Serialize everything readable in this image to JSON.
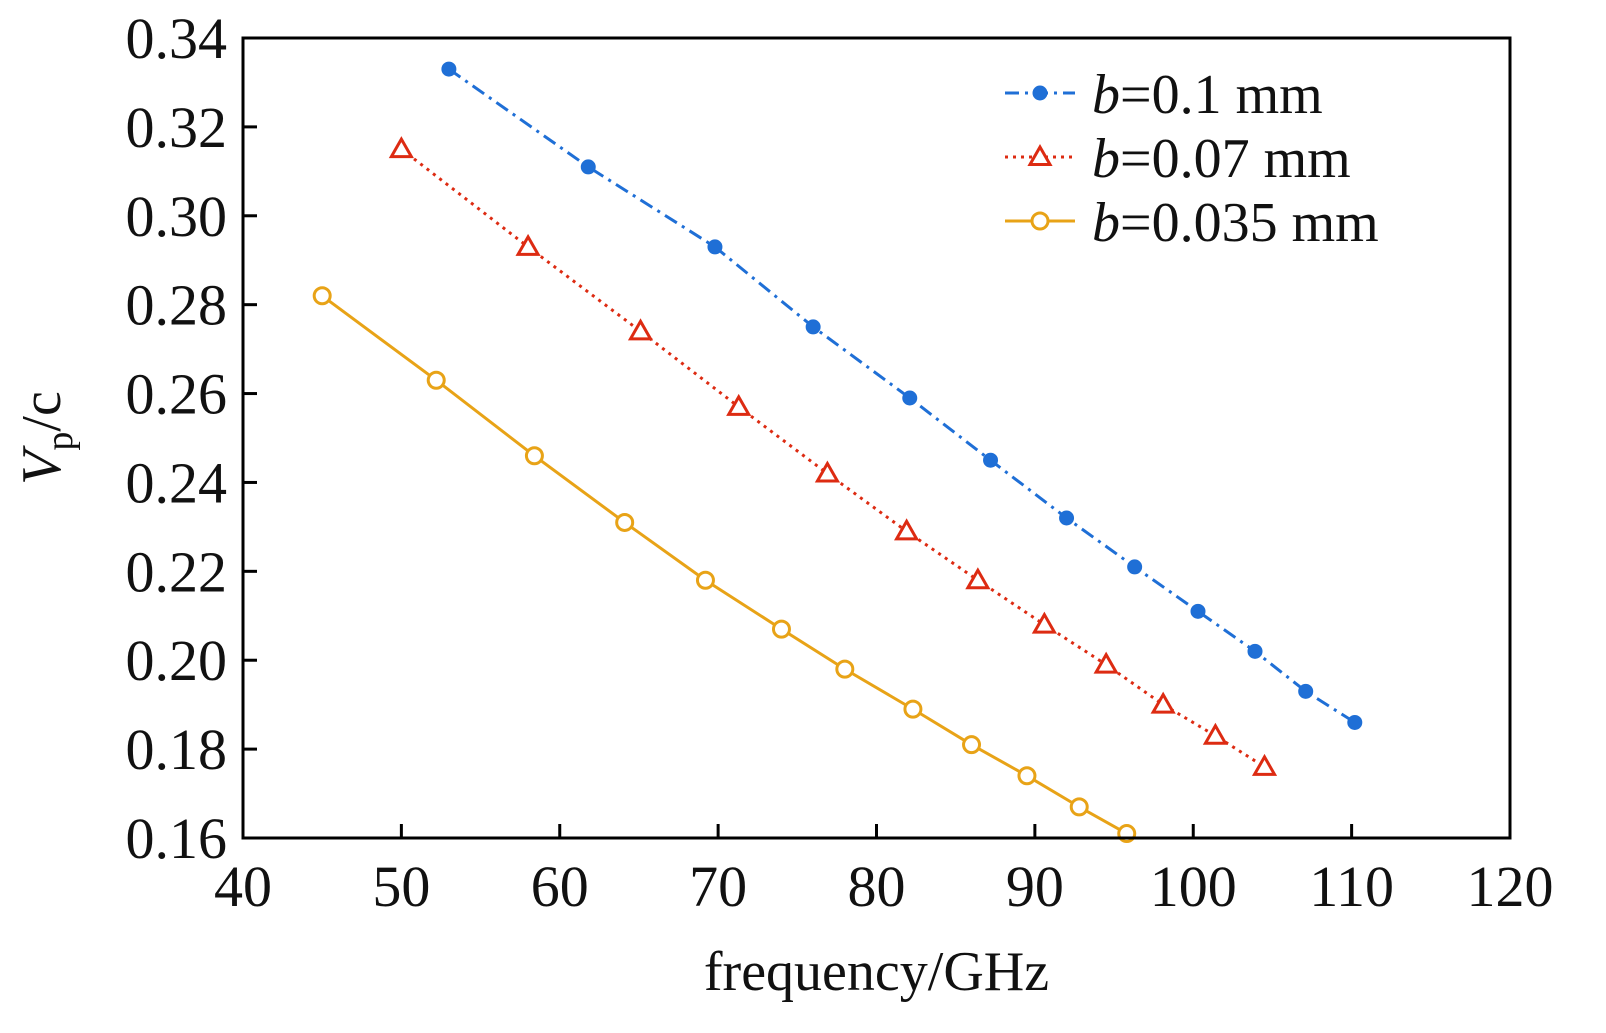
{
  "chart_data": {
    "type": "line",
    "xlabel": "frequency/GHz",
    "ylabel": {
      "main": "V",
      "sub": "p",
      "suffix": "/c"
    },
    "xlim": [
      40,
      120
    ],
    "ylim": [
      0.16,
      0.34
    ],
    "x_ticks": [
      "40",
      "50",
      "60",
      "70",
      "80",
      "90",
      "100",
      "110",
      "120"
    ],
    "y_ticks": [
      "0.16",
      "0.18",
      "0.20",
      "0.22",
      "0.24",
      "0.26",
      "0.28",
      "0.30",
      "0.32",
      "0.34"
    ],
    "legend_position": "top-right",
    "grid": false,
    "series": [
      {
        "name": "b=0.1 mm",
        "name_var": "b",
        "name_rest": "=0.1 mm",
        "color": "#1f6fd6",
        "line_style": "dash-dot",
        "marker": "filled-circle",
        "x": [
          53.0,
          61.8,
          69.8,
          76.0,
          82.1,
          87.2,
          92.0,
          96.3,
          100.3,
          103.9,
          107.1,
          110.2
        ],
        "y": [
          0.333,
          0.311,
          0.293,
          0.275,
          0.259,
          0.245,
          0.232,
          0.221,
          0.211,
          0.202,
          0.193,
          0.186
        ]
      },
      {
        "name": "b=0.07 mm",
        "name_var": "b",
        "name_rest": "=0.07 mm",
        "color": "#dd2b12",
        "line_style": "dotted",
        "marker": "open-triangle",
        "x": [
          50.0,
          58.0,
          65.1,
          71.3,
          76.9,
          81.9,
          86.4,
          90.6,
          94.5,
          98.1,
          101.4,
          104.5
        ],
        "y": [
          0.315,
          0.293,
          0.274,
          0.257,
          0.242,
          0.229,
          0.218,
          0.208,
          0.199,
          0.19,
          0.183,
          0.176
        ]
      },
      {
        "name": "b=0.035 mm",
        "name_var": "b",
        "name_rest": "=0.035 mm",
        "color": "#e8a317",
        "line_style": "solid",
        "marker": "open-circle",
        "x": [
          45.0,
          52.2,
          58.4,
          64.1,
          69.2,
          74.0,
          78.0,
          82.3,
          86.0,
          89.5,
          92.8,
          95.8
        ],
        "y": [
          0.282,
          0.263,
          0.246,
          0.231,
          0.218,
          0.207,
          0.198,
          0.189,
          0.181,
          0.174,
          0.167,
          0.161
        ]
      }
    ]
  }
}
